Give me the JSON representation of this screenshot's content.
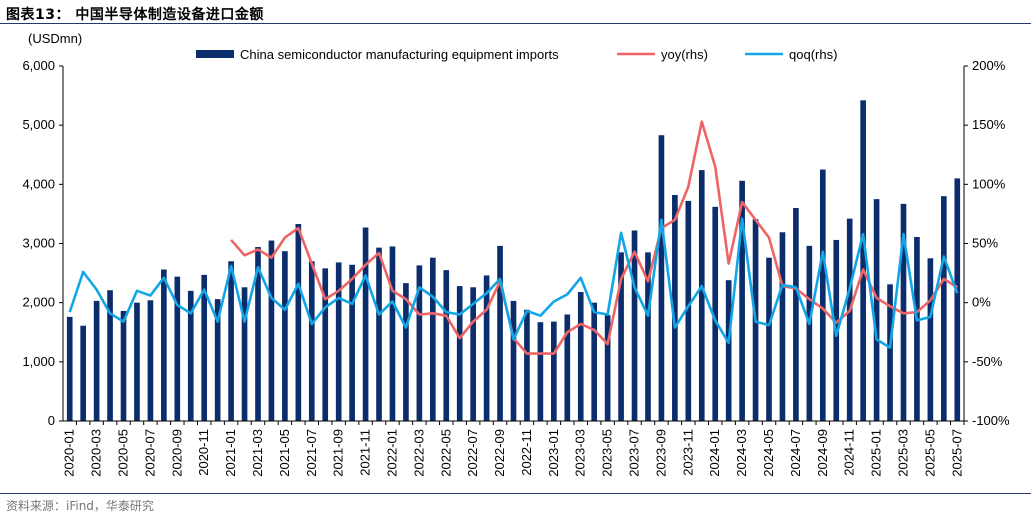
{
  "figure": {
    "title": "图表13：  中国半导体制造设备进口金额",
    "source": "资料来源：iFind，华泰研究"
  },
  "chart_data": {
    "type": "bar+line",
    "left_axis": {
      "label": "(USDmn)",
      "ylim": [
        0,
        6000
      ],
      "ticks": [
        0,
        1000,
        2000,
        3000,
        4000,
        5000,
        6000
      ],
      "tick_labels": [
        "0",
        "1,000",
        "2,000",
        "3,000",
        "4,000",
        "5,000",
        "6,000"
      ]
    },
    "right_axis": {
      "ylim": [
        -100,
        200
      ],
      "ticks": [
        -100,
        -50,
        0,
        50,
        100,
        150,
        200
      ],
      "tick_labels": [
        "-100%",
        "-50%",
        "0%",
        "50%",
        "100%",
        "150%",
        "200%"
      ]
    },
    "months": [
      "2020-01",
      "2020-02",
      "2020-03",
      "2020-04",
      "2020-05",
      "2020-06",
      "2020-07",
      "2020-08",
      "2020-09",
      "2020-10",
      "2020-11",
      "2020-12",
      "2021-01",
      "2021-02",
      "2021-03",
      "2021-04",
      "2021-05",
      "2021-06",
      "2021-07",
      "2021-08",
      "2021-09",
      "2021-10",
      "2021-11",
      "2021-12",
      "2022-01",
      "2022-02",
      "2022-03",
      "2022-04",
      "2022-05",
      "2022-06",
      "2022-07",
      "2022-08",
      "2022-09",
      "2022-10",
      "2022-11",
      "2022-12",
      "2023-01",
      "2023-02",
      "2023-03",
      "2023-04",
      "2023-05",
      "2023-06",
      "2023-07",
      "2023-08",
      "2023-09",
      "2023-10",
      "2023-11",
      "2023-12",
      "2024-01",
      "2024-02",
      "2024-03",
      "2024-04",
      "2024-05",
      "2024-06",
      "2024-07",
      "2024-08",
      "2024-09",
      "2024-10",
      "2024-11",
      "2024-12",
      "2025-01",
      "2025-02",
      "2025-03",
      "2025-04",
      "2025-05",
      "2025-06",
      "2025-07"
    ],
    "x_tick_labels": [
      "2020-01",
      "2020-03",
      "2020-05",
      "2020-07",
      "2020-09",
      "2020-11",
      "2021-01",
      "2021-03",
      "2021-05",
      "2021-07",
      "2021-09",
      "2021-11",
      "2022-01",
      "2022-03",
      "2022-05",
      "2022-07",
      "2022-09",
      "2022-11",
      "2023-01",
      "2023-03",
      "2023-05",
      "2023-07",
      "2023-09",
      "2023-11",
      "2024-01",
      "2024-03",
      "2024-05",
      "2024-07",
      "2024-09",
      "2024-11",
      "2025-01",
      "2025-03",
      "2025-05",
      "2025-07"
    ],
    "series": [
      {
        "name": "China semiconductor manufacturing equipment imports",
        "type": "bar",
        "axis": "left",
        "color": "#0b2d6b",
        "values": [
          1760,
          1610,
          2030,
          2210,
          1860,
          2000,
          2040,
          2560,
          2440,
          2200,
          2470,
          2060,
          2700,
          2260,
          2940,
          3050,
          2870,
          3330,
          2700,
          2580,
          2680,
          2640,
          3270,
          2930,
          2950,
          2330,
          2630,
          2760,
          2550,
          2280,
          2260,
          2460,
          2960,
          2030,
          1880,
          1670,
          1680,
          1800,
          2180,
          2000,
          1790,
          2850,
          3220,
          2850,
          4830,
          3820,
          3720,
          4240,
          3620,
          2380,
          4060,
          3410,
          2760,
          3190,
          3600,
          2960,
          4250,
          3060,
          3420,
          5420,
          3750,
          2310,
          3670,
          3110,
          2750,
          3800,
          4100
        ]
      },
      {
        "name": "yoy(rhs)",
        "type": "line",
        "axis": "right",
        "color": "#ef6464",
        "values": [
          null,
          null,
          null,
          null,
          null,
          null,
          null,
          null,
          null,
          null,
          null,
          null,
          53,
          40,
          45,
          38,
          55,
          63,
          33,
          3,
          10,
          20,
          32,
          42,
          10,
          3,
          -10,
          -9,
          -11,
          -30,
          -16,
          -6,
          18,
          -30,
          -43,
          -43,
          -43,
          -25,
          -18,
          -23,
          -35,
          20,
          43,
          18,
          63,
          70,
          98,
          153,
          115,
          33,
          85,
          70,
          55,
          14,
          12,
          3,
          -5,
          -17,
          -7,
          28,
          4,
          -3,
          -9,
          -8,
          2,
          20,
          13
        ]
      },
      {
        "name": "qoq(rhs)",
        "type": "line",
        "axis": "right",
        "color": "#12a6e6",
        "values": [
          -8,
          26,
          11,
          -9,
          -16,
          10,
          6,
          21,
          -2,
          -9,
          11,
          -16,
          31,
          -16,
          30,
          4,
          -6,
          16,
          -18,
          -4,
          4,
          -1,
          23,
          -10,
          1,
          -21,
          13,
          5,
          -8,
          -10,
          -1,
          8,
          20,
          -31,
          -7,
          -11,
          1,
          7,
          21,
          -8,
          -10,
          59,
          13,
          -11,
          70,
          -21,
          -3,
          14,
          -15,
          -34,
          71,
          -16,
          -19,
          15,
          13,
          -18,
          43,
          -28,
          12,
          58,
          -31,
          -38,
          58,
          -15,
          -12,
          39,
          8
        ]
      }
    ]
  }
}
